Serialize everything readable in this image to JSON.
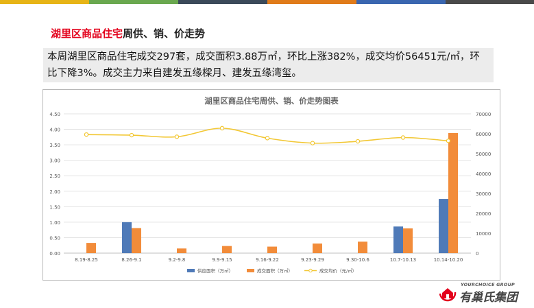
{
  "heading": {
    "highlight": "湖里区商品住宅",
    "rest": "周供、销、价走势"
  },
  "summary": "本周湖里区商品住宅成交297套，成交面积3.88万㎡，环比上涨382%，成交均价56451元/㎡，环比下降3%。成交主力来自建发五缘樑月、建发五缘湾玺。",
  "top_bar_colors": [
    "#e7b416",
    "#6aa84f",
    "#3b4a5a",
    "#e07b1a",
    "#3a66b0",
    "#4a4a4a"
  ],
  "colors": {
    "supply": "#4f7ab8",
    "sold": "#f28c3a",
    "price": "#f2c733",
    "highlight": "#e3001b"
  },
  "logo": {
    "en": "YOURCHOICE GROUP",
    "cn": "有巢氏集团",
    "icon": "house-seal-icon"
  },
  "chart_data": {
    "type": "bar",
    "title": "湖里区商品住宅周供、销、价走势图表",
    "categories": [
      "8.19-8.25",
      "8.26-9.1",
      "9.2-9.8",
      "9.9-9.15",
      "9.16-9.22",
      "9.23-9.29",
      "9.30-10.6",
      "10.7-10.13",
      "10.14-10.20"
    ],
    "series": [
      {
        "name": "供应面积（万㎡）",
        "kind": "bar",
        "axis": "left",
        "values": [
          0,
          1.0,
          0,
          0,
          0,
          0,
          0,
          0.86,
          1.75
        ]
      },
      {
        "name": "成交面积（万㎡）",
        "kind": "bar",
        "axis": "left",
        "values": [
          0.33,
          0.81,
          0.15,
          0.23,
          0.21,
          0.31,
          0.37,
          0.8,
          3.88
        ]
      },
      {
        "name": "成交均价（元/㎡）",
        "kind": "line",
        "axis": "right",
        "values": [
          59600,
          59300,
          58500,
          62800,
          57800,
          55300,
          56200,
          58100,
          56451
        ]
      }
    ],
    "y_left": {
      "min": 0,
      "max": 4.5,
      "step": 0.5,
      "ticks": [
        "0.00",
        "0.50",
        "1.00",
        "1.50",
        "2.00",
        "2.50",
        "3.00",
        "3.50",
        "4.00",
        "4.50"
      ]
    },
    "y_right": {
      "min": 0,
      "max": 70000,
      "step": 10000,
      "ticks": [
        "0",
        "10000",
        "20000",
        "30000",
        "40000",
        "50000",
        "60000",
        "70000"
      ]
    },
    "grid": true,
    "legend": "bottom"
  }
}
